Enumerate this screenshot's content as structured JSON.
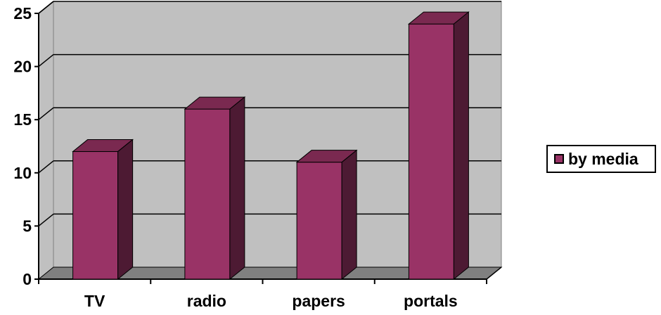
{
  "chart_data": {
    "type": "bar",
    "categories": [
      "TV",
      "radio",
      "papers",
      "portals"
    ],
    "series": [
      {
        "name": "by media",
        "values": [
          12,
          16,
          11,
          24
        ]
      }
    ],
    "ylim": [
      0,
      25
    ],
    "yticks": [
      "0",
      "5",
      "10",
      "15",
      "20",
      "25"
    ],
    "grid": true,
    "legend_position": "right",
    "three_d": true,
    "colors": {
      "bar_front": "#993366",
      "bar_top": "#7a2950",
      "bar_side": "#4d1a33",
      "plot_wall": "#c0c0c0",
      "floor": "#808080",
      "gridline": "#000000"
    }
  }
}
